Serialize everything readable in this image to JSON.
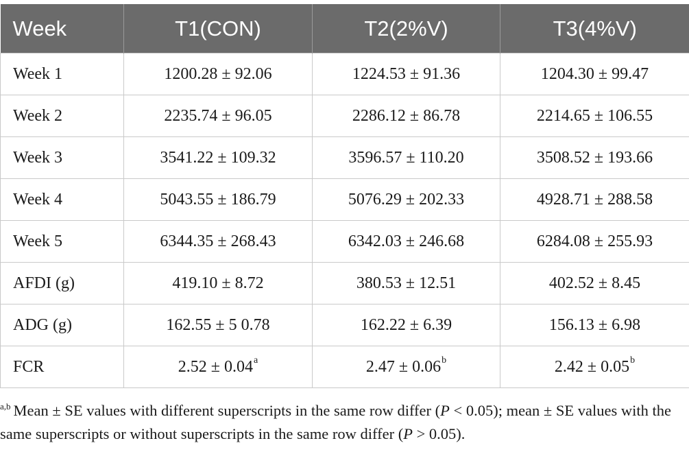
{
  "table": {
    "headers": [
      "Week",
      "T1(CON)",
      "T2(2%V)",
      "T3(4%V)"
    ],
    "rows": [
      {
        "label": "Week 1",
        "cells": [
          {
            "value": "1200.28 ± 92.06",
            "sup": ""
          },
          {
            "value": "1224.53 ± 91.36",
            "sup": ""
          },
          {
            "value": "1204.30 ± 99.47",
            "sup": ""
          }
        ]
      },
      {
        "label": "Week 2",
        "cells": [
          {
            "value": "2235.74 ± 96.05",
            "sup": ""
          },
          {
            "value": "2286.12 ± 86.78",
            "sup": ""
          },
          {
            "value": "2214.65 ± 106.55",
            "sup": ""
          }
        ]
      },
      {
        "label": "Week 3",
        "cells": [
          {
            "value": "3541.22 ± 109.32",
            "sup": ""
          },
          {
            "value": "3596.57 ± 110.20",
            "sup": ""
          },
          {
            "value": "3508.52 ± 193.66",
            "sup": ""
          }
        ]
      },
      {
        "label": "Week 4",
        "cells": [
          {
            "value": "5043.55 ± 186.79",
            "sup": ""
          },
          {
            "value": "5076.29 ± 202.33",
            "sup": ""
          },
          {
            "value": "4928.71 ± 288.58",
            "sup": ""
          }
        ]
      },
      {
        "label": "Week 5",
        "cells": [
          {
            "value": "6344.35 ± 268.43",
            "sup": ""
          },
          {
            "value": "6342.03 ± 246.68",
            "sup": ""
          },
          {
            "value": "6284.08 ± 255.93",
            "sup": ""
          }
        ]
      },
      {
        "label": "AFDI (g)",
        "cells": [
          {
            "value": "419.10 ± 8.72",
            "sup": ""
          },
          {
            "value": "380.53 ± 12.51",
            "sup": ""
          },
          {
            "value": "402.52 ± 8.45",
            "sup": ""
          }
        ]
      },
      {
        "label": "ADG (g)",
        "cells": [
          {
            "value": "162.55 ± 5 0.78",
            "sup": ""
          },
          {
            "value": "162.22 ± 6.39",
            "sup": ""
          },
          {
            "value": "156.13 ± 6.98",
            "sup": ""
          }
        ]
      },
      {
        "label": "FCR",
        "cells": [
          {
            "value": "2.52 ± 0.04",
            "sup": "a"
          },
          {
            "value": "2.47 ± 0.06",
            "sup": "b"
          },
          {
            "value": "2.42 ± 0.05",
            "sup": "b"
          }
        ]
      }
    ]
  },
  "footnote": {
    "marker": "a,b",
    "part1": "Mean ± SE values with different superscripts in the same row differ (",
    "p1_var": "P",
    "p1_rest": " < 0.05); mean ± SE values with the same superscripts or without superscripts in the same row differ (",
    "p2_var": "P",
    "p2_rest": " > 0.05)."
  }
}
